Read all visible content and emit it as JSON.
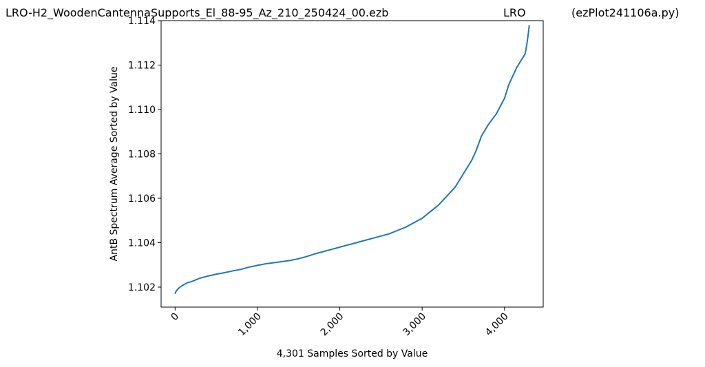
{
  "header": {
    "left": "LRO-H2_WoodenCantennaSupports_El_88-95_Az_210_250424_00.ezb",
    "middle": "LRO",
    "right": "(ezPlot241106a.py)"
  },
  "chart_data": {
    "type": "line",
    "xlabel": "4,301 Samples Sorted by Value",
    "ylabel": "AntB Spectrum Average Sorted by Value",
    "xlim": [
      -170,
      4470
    ],
    "ylim": [
      1.1011,
      1.114
    ],
    "xticks": [
      0,
      1000,
      2000,
      3000,
      4000
    ],
    "xtick_labels": [
      "0",
      "1,000",
      "2,000",
      "3,000",
      "4,000"
    ],
    "yticks": [
      1.102,
      1.104,
      1.106,
      1.108,
      1.11,
      1.112,
      1.114
    ],
    "ytick_labels": [
      "1.102",
      "1.104",
      "1.106",
      "1.108",
      "1.110",
      "1.112",
      "1.114"
    ],
    "grid": false,
    "color": "#1f77b4",
    "series": [
      {
        "x": [
          0,
          10,
          30,
          60,
          100,
          150,
          200,
          300,
          400,
          500,
          600,
          700,
          800,
          900,
          1000,
          1100,
          1200,
          1300,
          1400,
          1500,
          1600,
          1700,
          1800,
          1900,
          2000,
          2100,
          2200,
          2300,
          2400,
          2500,
          2600,
          2700,
          2800,
          2900,
          3000,
          3100,
          3200,
          3300,
          3400,
          3500,
          3600,
          3650,
          3700,
          3720,
          3800,
          3900,
          4000,
          4050,
          4100,
          4150,
          4200,
          4250,
          4270,
          4285,
          4295,
          4300
        ],
        "y": [
          1.1017,
          1.1018,
          1.1019,
          1.102,
          1.1021,
          1.1022,
          1.10225,
          1.1024,
          1.1025,
          1.10258,
          1.10265,
          1.10273,
          1.1028,
          1.1029,
          1.10298,
          1.10305,
          1.1031,
          1.10315,
          1.1032,
          1.10328,
          1.10338,
          1.1035,
          1.1036,
          1.1037,
          1.1038,
          1.1039,
          1.104,
          1.1041,
          1.1042,
          1.1043,
          1.1044,
          1.10455,
          1.1047,
          1.1049,
          1.1051,
          1.1054,
          1.1057,
          1.1061,
          1.1065,
          1.1071,
          1.1077,
          1.1081,
          1.1086,
          1.1088,
          1.1093,
          1.1098,
          1.1105,
          1.1111,
          1.1115,
          1.1119,
          1.1122,
          1.1125,
          1.1129,
          1.1133,
          1.1136,
          1.1138
        ]
      }
    ]
  }
}
